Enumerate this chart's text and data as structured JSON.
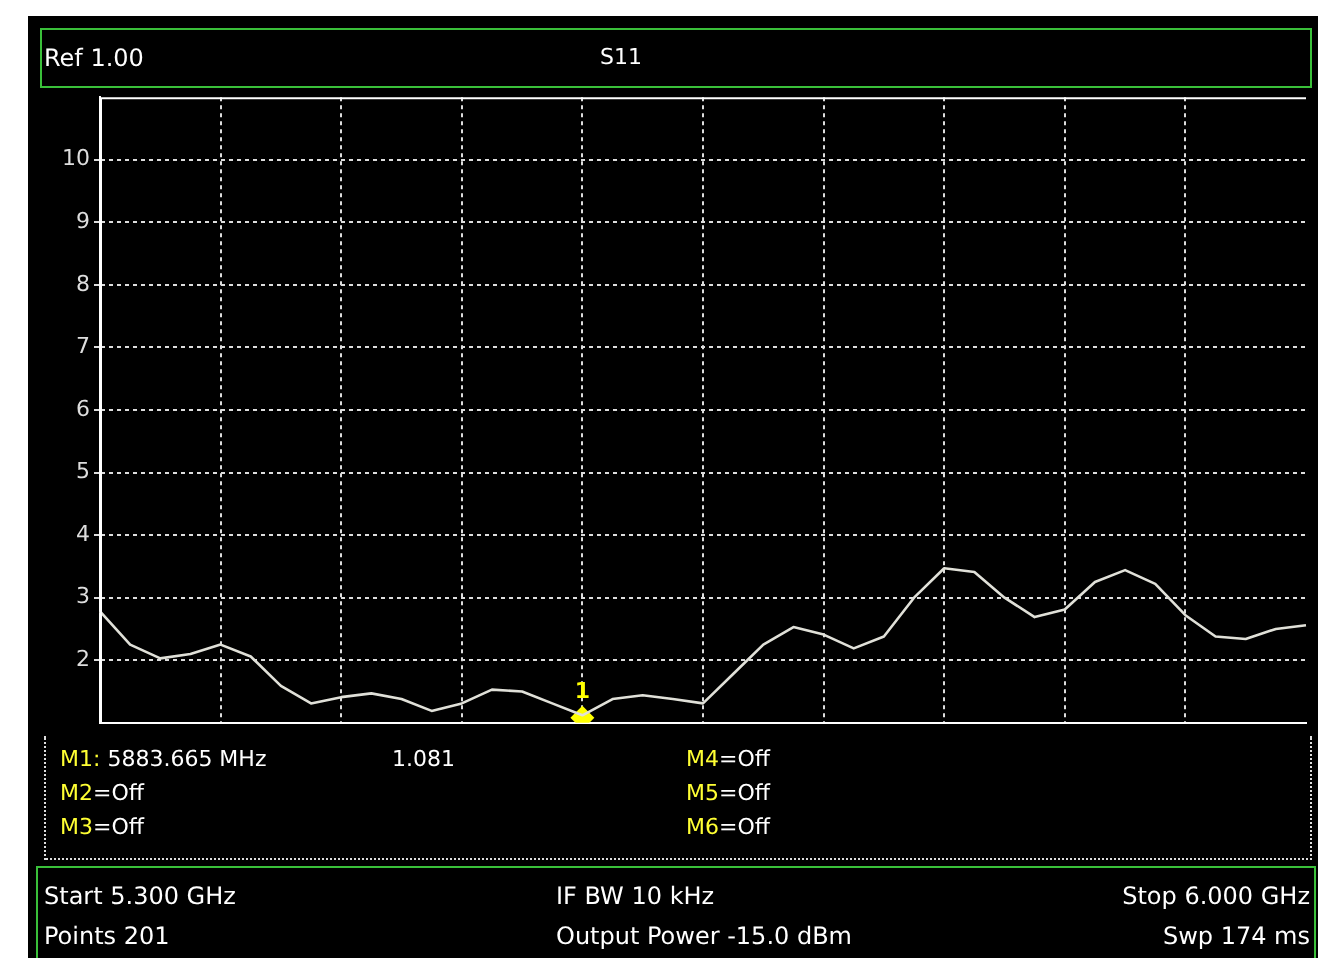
{
  "chart_data": {
    "type": "line",
    "title": "S11",
    "categories": [
      null,
      null,
      null,
      null,
      null,
      null,
      null,
      null,
      null,
      null,
      null,
      null,
      null,
      null,
      null,
      null,
      null,
      null,
      null,
      null,
      null,
      null,
      null,
      null,
      null,
      null,
      null,
      null,
      null,
      null,
      null,
      null,
      null,
      null,
      null,
      null,
      null,
      null,
      null,
      null,
      null
    ],
    "series": [
      {
        "color": "#e0e0d8",
        "values": [
          2.78,
          2.25,
          2.03,
          2.1,
          2.25,
          2.06,
          1.59,
          1.31,
          1.41,
          1.47,
          1.38,
          1.19,
          1.31,
          1.53,
          1.5,
          1.31,
          1.12,
          1.38,
          1.44,
          1.38,
          1.31,
          1.78,
          2.25,
          2.53,
          2.41,
          2.19,
          2.38,
          3.0,
          3.47,
          3.41,
          3.0,
          2.69,
          2.81,
          3.25,
          3.44,
          3.22,
          2.72,
          2.38,
          2.34,
          2.5,
          2.56
        ]
      },
      {
        "type": "scatter",
        "name": "1",
        "color": "#ffff00",
        "marker": "diamond",
        "values": [
          null,
          null,
          null,
          null,
          null,
          null,
          null,
          null,
          null,
          null,
          null,
          null,
          null,
          null,
          null,
          null,
          1.081,
          null,
          null,
          null,
          null,
          null,
          null,
          null,
          null,
          null,
          null,
          null,
          null,
          null,
          null,
          null,
          null,
          null,
          null,
          null,
          null,
          null,
          null,
          null,
          null
        ]
      }
    ],
    "ylim": [
      1,
      11
    ],
    "yticks": [
      2,
      3,
      4,
      5,
      6,
      7,
      8,
      9,
      10
    ],
    "grid": true,
    "tick_labels": "y",
    "legend": false,
    "annotations": [
      "Ref 1.00",
      "M1:  5883.665 MHz",
      "1.081",
      "M2=Off",
      "M3=Off",
      "M4=Off",
      "M5=Off",
      "M6=Off",
      "Start 5.300 GHz",
      "Points 201",
      "IF BW 10 kHz",
      "Output Power -15.0 dBm",
      "Stop 6.000 GHz",
      "Swp 174 ms"
    ]
  }
}
